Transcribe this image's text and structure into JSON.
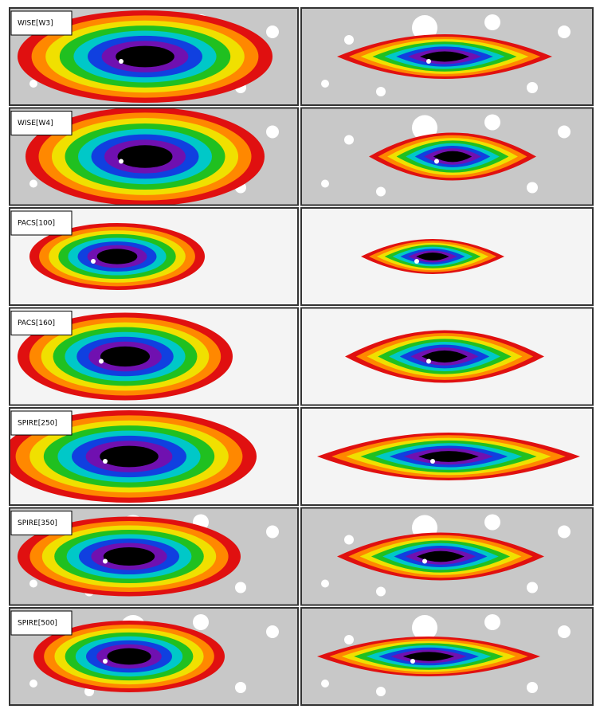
{
  "panels": [
    {
      "label": "WISE[W3]"
    },
    {
      "label": "WISE[W4]"
    },
    {
      "label": "PACS[100]"
    },
    {
      "label": "PACS[160]"
    },
    {
      "label": "SPIRE[250]"
    },
    {
      "label": "SPIRE[350]"
    },
    {
      "label": "SPIRE[500]"
    }
  ]
}
